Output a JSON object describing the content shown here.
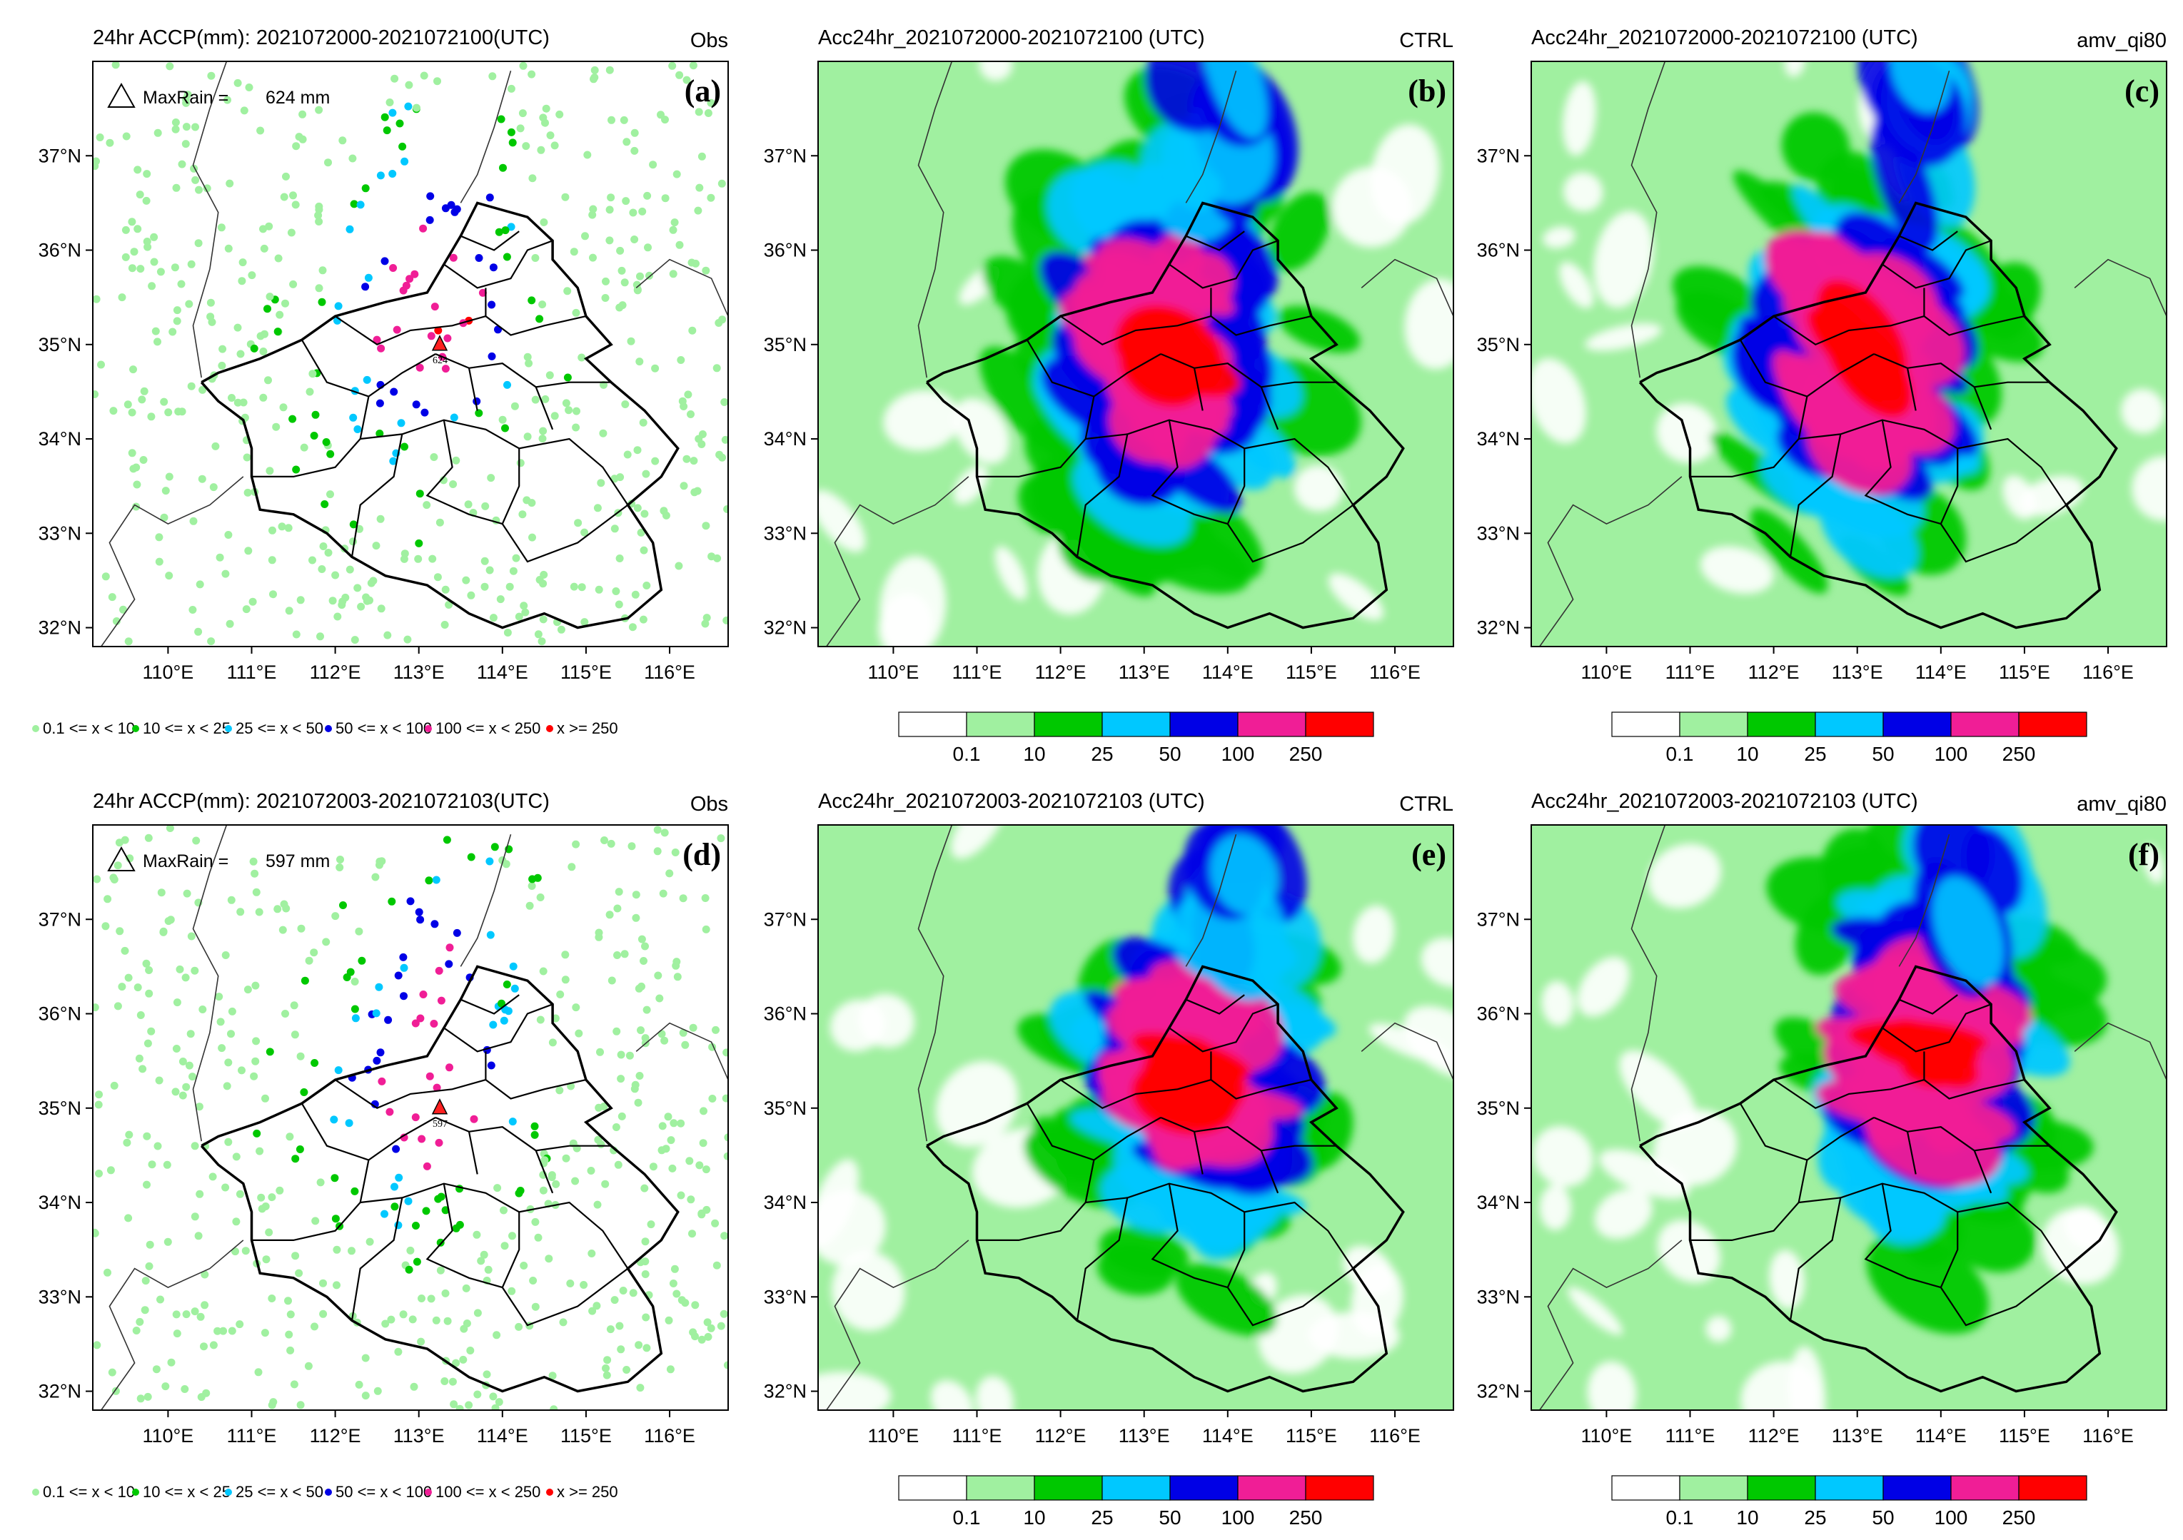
{
  "figure": {
    "lon_ticks": [
      "110°E",
      "111°E",
      "112°E",
      "113°E",
      "114°E",
      "115°E",
      "116°E"
    ],
    "lon_values": [
      110,
      111,
      112,
      113,
      114,
      115,
      116
    ],
    "lat_ticks": [
      "37°N",
      "36°N",
      "35°N",
      "34°N",
      "33°N",
      "32°N"
    ],
    "lat_values": [
      37,
      36,
      35,
      34,
      33,
      32
    ],
    "lon_range": [
      109.1,
      116.7
    ],
    "lat_range": [
      31.8,
      38.0
    ]
  },
  "colors": {
    "c0": "#ffffff",
    "c1": "#a0f0a0",
    "c2": "#00c800",
    "c3": "#00c8ff",
    "c4": "#0000e6",
    "c5": "#f01e96",
    "c6": "#ff0000"
  },
  "obs_legend": [
    {
      "label": "0.1 <= x < 10",
      "color": "#a0f0a0"
    },
    {
      "label": "10 <= x < 25",
      "color": "#00c800"
    },
    {
      "label": "25 <= x < 50",
      "color": "#00c8ff"
    },
    {
      "label": "50 <= x < 100",
      "color": "#0000e6"
    },
    {
      "label": "100 <= x < 250",
      "color": "#f01e96"
    },
    {
      "label": "x >= 250",
      "color": "#ff0000"
    }
  ],
  "colorbar": {
    "labels": [
      "0.1",
      "10",
      "25",
      "50",
      "100",
      "250"
    ],
    "colors": [
      "#ffffff",
      "#a0f0a0",
      "#00c800",
      "#00c8ff",
      "#0000e6",
      "#f01e96",
      "#ff0000"
    ]
  },
  "panels": [
    {
      "id": "a",
      "type": "obs",
      "title": "24hr ACCP(mm): 2021072000-2021072100(UTC)",
      "tag": "Obs",
      "label": "(a)",
      "maxrain_label": "MaxRain =",
      "maxrain_value": "624 mm",
      "max_station": "624",
      "max_lon": 113.25,
      "max_lat": 35.0
    },
    {
      "id": "b",
      "type": "model",
      "title": "Acc24hr_2021072000-2021072100 (UTC)",
      "tag": "CTRL",
      "label": "(b)"
    },
    {
      "id": "c",
      "type": "model",
      "title": "Acc24hr_2021072000-2021072100 (UTC)",
      "tag": "amv_qi80",
      "label": "(c)"
    },
    {
      "id": "d",
      "type": "obs",
      "title": "24hr ACCP(mm): 2021072003-2021072103(UTC)",
      "tag": "Obs",
      "label": "(d)",
      "maxrain_label": "MaxRain =",
      "maxrain_value": "597 mm",
      "max_station": "597",
      "max_lon": 113.25,
      "max_lat": 35.0
    },
    {
      "id": "e",
      "type": "model",
      "title": "Acc24hr_2021072003-2021072103 (UTC)",
      "tag": "CTRL",
      "label": "(e)"
    },
    {
      "id": "f",
      "type": "model",
      "title": "Acc24hr_2021072003-2021072103 (UTC)",
      "tag": "amv_qi80",
      "label": "(f)"
    }
  ]
}
